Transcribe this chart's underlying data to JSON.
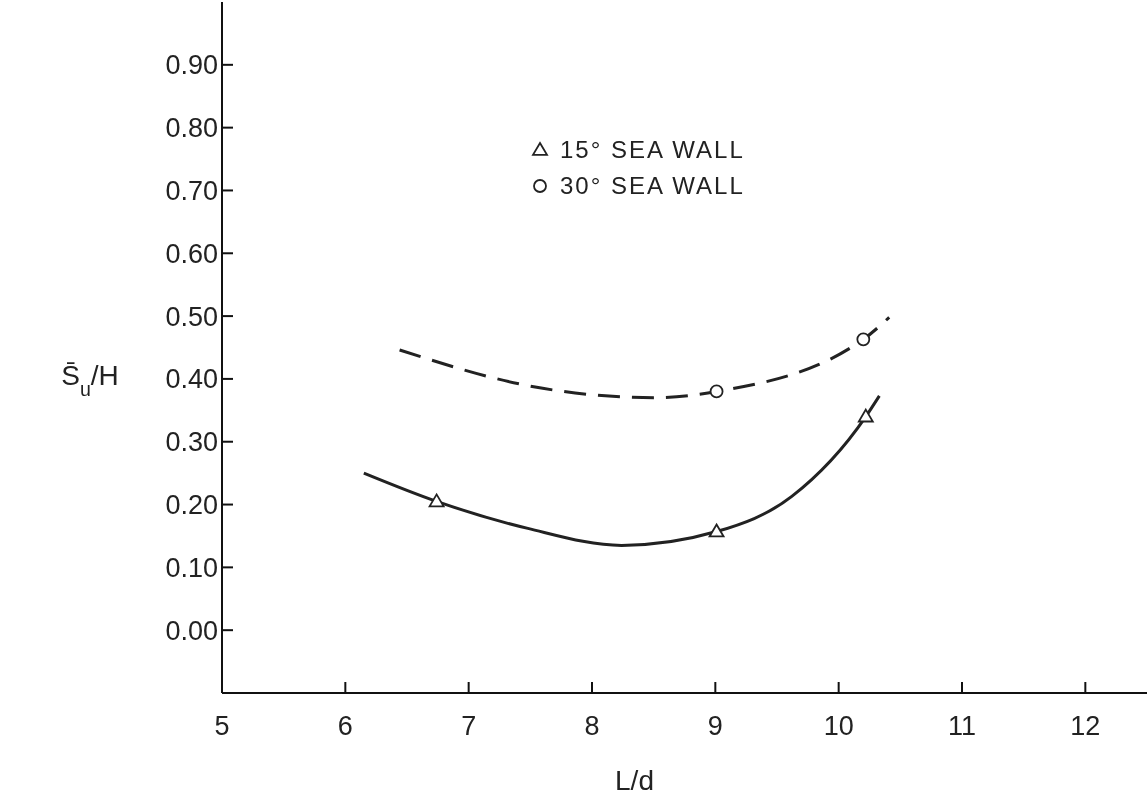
{
  "chart_data": {
    "type": "line",
    "xlabel": "L/d",
    "ylabel": "S̄$_{u}$/H",
    "xlim": [
      5,
      12.5
    ],
    "xticks": [
      5,
      6,
      7,
      8,
      9,
      10,
      11,
      12
    ],
    "ylim": [
      -0.1,
      1.0
    ],
    "yticks": [
      {
        "value": 0,
        "label": "0.00"
      },
      {
        "value": 0.1,
        "label": "0.10"
      },
      {
        "value": 0.2,
        "label": "0.20"
      },
      {
        "value": 0.3,
        "label": "0.30"
      },
      {
        "value": 0.4,
        "label": "0.40"
      },
      {
        "value": 0.5,
        "label": "0.50"
      },
      {
        "value": 0.6,
        "label": "0.60"
      },
      {
        "value": 0.7,
        "label": "0.70"
      },
      {
        "value": 0.8,
        "label": "0.80"
      },
      {
        "value": 0.9,
        "label": "0.90"
      }
    ],
    "grid": false,
    "legend": "top",
    "series": [
      {
        "name": "15° SEA WALL",
        "type": "scatter",
        "marker": "triangle",
        "color": "#222222",
        "x": [
          6.74,
          9.01,
          10.22
        ],
        "values": [
          0.205,
          0.157,
          0.34
        ]
      },
      {
        "name": "30° SEA WALL",
        "type": "scatter",
        "marker": "circle",
        "color": "#222222",
        "x": [
          9.01,
          10.2
        ],
        "values": [
          0.38,
          0.463
        ]
      },
      {
        "type": "line",
        "line_style": "solid",
        "marker": "none",
        "color": "#222222",
        "x": [
          6.15,
          6.74,
          7.48,
          8.24,
          9.01,
          9.62,
          10.22,
          10.33
        ],
        "values": [
          0.25,
          0.205,
          0.162,
          0.135,
          0.157,
          0.213,
          0.34,
          0.373
        ]
      },
      {
        "type": "line",
        "line_style": "dashed",
        "marker": "none",
        "color": "#222222",
        "x": [
          6.44,
          7.6,
          8.51,
          9.01,
          10.2,
          10.41
        ],
        "values": [
          0.446,
          0.385,
          0.37,
          0.38,
          0.463,
          0.498
        ]
      }
    ]
  }
}
